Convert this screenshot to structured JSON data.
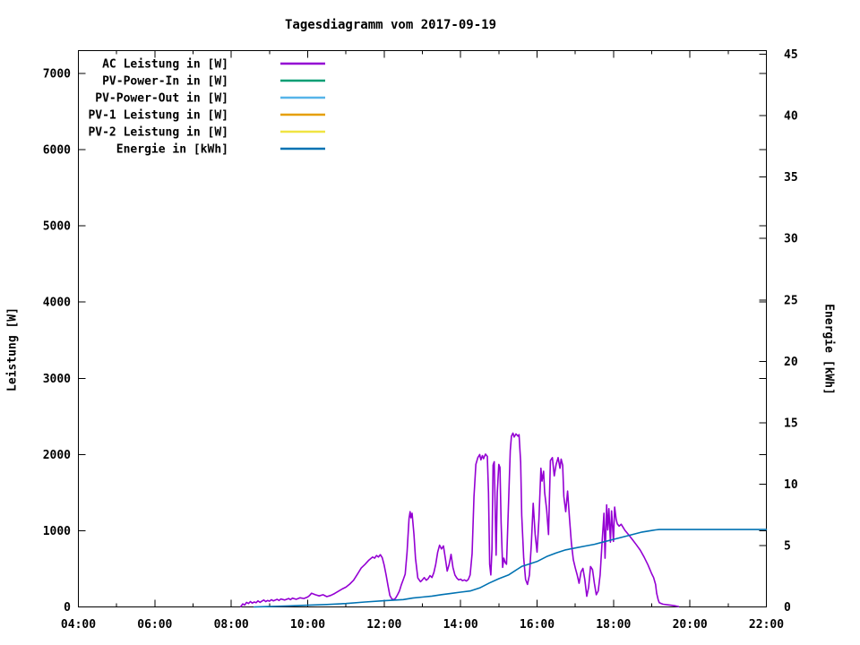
{
  "chart_data": {
    "type": "line",
    "title": "Tagesdiagramm vom 2017-09-19",
    "background": "#ffffff",
    "border_color": "#000000",
    "legend_position": "top-left",
    "x_axis": {
      "lim": [
        4,
        22
      ],
      "major_tick_hours": 2,
      "minor_tick_hours": 1,
      "tick_labels": [
        {
          "h": 4,
          "label": "04:00"
        },
        {
          "h": 6,
          "label": "06:00"
        },
        {
          "h": 8,
          "label": "08:00"
        },
        {
          "h": 10,
          "label": "10:00"
        },
        {
          "h": 12,
          "label": "12:00"
        },
        {
          "h": 14,
          "label": "14:00"
        },
        {
          "h": 16,
          "label": "16:00"
        },
        {
          "h": 18,
          "label": "18:00"
        },
        {
          "h": 20,
          "label": "20:00"
        },
        {
          "h": 22,
          "label": "22:00"
        }
      ]
    },
    "y_left": {
      "label": "Leistung [W]",
      "lim": [
        0,
        7300
      ],
      "tick_step": 1000,
      "ticks": [
        0,
        1000,
        2000,
        3000,
        4000,
        5000,
        6000,
        7000
      ]
    },
    "y_right": {
      "label": "Energie [kWh]",
      "lim": [
        0,
        45.3
      ],
      "tick_step": 5,
      "ticks": [
        0,
        5,
        10,
        15,
        20,
        25,
        30,
        35,
        40,
        45
      ]
    },
    "series": [
      {
        "name": "AC Leistung in [W]",
        "color": "#9400d3",
        "axis": "left",
        "points": [
          [
            8.25,
            5
          ],
          [
            8.3,
            40
          ],
          [
            8.35,
            25
          ],
          [
            8.4,
            60
          ],
          [
            8.45,
            45
          ],
          [
            8.5,
            70
          ],
          [
            8.55,
            50
          ],
          [
            8.6,
            65
          ],
          [
            8.65,
            55
          ],
          [
            8.7,
            80
          ],
          [
            8.75,
            60
          ],
          [
            8.8,
            75
          ],
          [
            8.85,
            90
          ],
          [
            8.9,
            70
          ],
          [
            8.95,
            85
          ],
          [
            9.0,
            75
          ],
          [
            9.05,
            95
          ],
          [
            9.1,
            80
          ],
          [
            9.2,
            100
          ],
          [
            9.25,
            85
          ],
          [
            9.3,
            105
          ],
          [
            9.4,
            90
          ],
          [
            9.5,
            110
          ],
          [
            9.55,
            95
          ],
          [
            9.6,
            115
          ],
          [
            9.7,
            100
          ],
          [
            9.8,
            120
          ],
          [
            9.9,
            110
          ],
          [
            10.0,
            130
          ],
          [
            10.05,
            150
          ],
          [
            10.1,
            180
          ],
          [
            10.2,
            160
          ],
          [
            10.3,
            145
          ],
          [
            10.4,
            160
          ],
          [
            10.5,
            135
          ],
          [
            10.6,
            150
          ],
          [
            10.7,
            175
          ],
          [
            10.8,
            205
          ],
          [
            10.9,
            235
          ],
          [
            11.0,
            260
          ],
          [
            11.1,
            300
          ],
          [
            11.2,
            350
          ],
          [
            11.3,
            430
          ],
          [
            11.35,
            470
          ],
          [
            11.4,
            510
          ],
          [
            11.5,
            560
          ],
          [
            11.6,
            615
          ],
          [
            11.7,
            655
          ],
          [
            11.75,
            640
          ],
          [
            11.8,
            675
          ],
          [
            11.85,
            655
          ],
          [
            11.9,
            685
          ],
          [
            11.95,
            645
          ],
          [
            12.0,
            550
          ],
          [
            12.05,
            420
          ],
          [
            12.1,
            280
          ],
          [
            12.15,
            150
          ],
          [
            12.2,
            105
          ],
          [
            12.25,
            95
          ],
          [
            12.3,
            115
          ],
          [
            12.35,
            160
          ],
          [
            12.4,
            210
          ],
          [
            12.45,
            290
          ],
          [
            12.5,
            360
          ],
          [
            12.55,
            430
          ],
          [
            12.6,
            720
          ],
          [
            12.65,
            1160
          ],
          [
            12.68,
            1250
          ],
          [
            12.7,
            1170
          ],
          [
            12.73,
            1230
          ],
          [
            12.78,
            950
          ],
          [
            12.82,
            640
          ],
          [
            12.88,
            380
          ],
          [
            12.95,
            330
          ],
          [
            13.0,
            355
          ],
          [
            13.05,
            385
          ],
          [
            13.1,
            350
          ],
          [
            13.15,
            370
          ],
          [
            13.2,
            410
          ],
          [
            13.25,
            385
          ],
          [
            13.3,
            450
          ],
          [
            13.35,
            560
          ],
          [
            13.4,
            720
          ],
          [
            13.45,
            810
          ],
          [
            13.5,
            760
          ],
          [
            13.55,
            800
          ],
          [
            13.6,
            640
          ],
          [
            13.65,
            470
          ],
          [
            13.7,
            560
          ],
          [
            13.75,
            690
          ],
          [
            13.8,
            520
          ],
          [
            13.85,
            420
          ],
          [
            13.9,
            380
          ],
          [
            13.95,
            355
          ],
          [
            14.0,
            365
          ],
          [
            14.05,
            345
          ],
          [
            14.1,
            355
          ],
          [
            14.15,
            340
          ],
          [
            14.2,
            360
          ],
          [
            14.25,
            420
          ],
          [
            14.3,
            700
          ],
          [
            14.35,
            1450
          ],
          [
            14.4,
            1870
          ],
          [
            14.45,
            1960
          ],
          [
            14.5,
            2000
          ],
          [
            14.53,
            1930
          ],
          [
            14.57,
            1985
          ],
          [
            14.6,
            1945
          ],
          [
            14.65,
            2005
          ],
          [
            14.7,
            1975
          ],
          [
            14.73,
            1500
          ],
          [
            14.76,
            560
          ],
          [
            14.79,
            420
          ],
          [
            14.82,
            760
          ],
          [
            14.85,
            1860
          ],
          [
            14.88,
            1905
          ],
          [
            14.9,
            1400
          ],
          [
            14.93,
            680
          ],
          [
            14.96,
            1500
          ],
          [
            15.0,
            1870
          ],
          [
            15.03,
            1830
          ],
          [
            15.06,
            1100
          ],
          [
            15.1,
            520
          ],
          [
            15.13,
            640
          ],
          [
            15.17,
            580
          ],
          [
            15.2,
            560
          ],
          [
            15.25,
            1300
          ],
          [
            15.3,
            2050
          ],
          [
            15.33,
            2240
          ],
          [
            15.37,
            2280
          ],
          [
            15.4,
            2230
          ],
          [
            15.45,
            2270
          ],
          [
            15.5,
            2240
          ],
          [
            15.53,
            2260
          ],
          [
            15.57,
            1900
          ],
          [
            15.6,
            1200
          ],
          [
            15.65,
            640
          ],
          [
            15.7,
            360
          ],
          [
            15.75,
            295
          ],
          [
            15.8,
            420
          ],
          [
            15.85,
            820
          ],
          [
            15.9,
            1360
          ],
          [
            15.95,
            950
          ],
          [
            16.0,
            720
          ],
          [
            16.05,
            1150
          ],
          [
            16.1,
            1820
          ],
          [
            16.13,
            1650
          ],
          [
            16.17,
            1780
          ],
          [
            16.2,
            1500
          ],
          [
            16.25,
            1280
          ],
          [
            16.3,
            950
          ],
          [
            16.35,
            1920
          ],
          [
            16.4,
            1960
          ],
          [
            16.45,
            1720
          ],
          [
            16.5,
            1870
          ],
          [
            16.55,
            1960
          ],
          [
            16.6,
            1820
          ],
          [
            16.63,
            1940
          ],
          [
            16.67,
            1860
          ],
          [
            16.7,
            1450
          ],
          [
            16.75,
            1250
          ],
          [
            16.8,
            1520
          ],
          [
            16.85,
            1150
          ],
          [
            16.9,
            830
          ],
          [
            16.95,
            620
          ],
          [
            17.0,
            510
          ],
          [
            17.05,
            420
          ],
          [
            17.1,
            310
          ],
          [
            17.15,
            460
          ],
          [
            17.2,
            505
          ],
          [
            17.25,
            360
          ],
          [
            17.3,
            140
          ],
          [
            17.35,
            260
          ],
          [
            17.4,
            530
          ],
          [
            17.45,
            490
          ],
          [
            17.5,
            310
          ],
          [
            17.55,
            160
          ],
          [
            17.6,
            210
          ],
          [
            17.65,
            420
          ],
          [
            17.7,
            830
          ],
          [
            17.75,
            1230
          ],
          [
            17.78,
            640
          ],
          [
            17.82,
            1340
          ],
          [
            17.85,
            1010
          ],
          [
            17.88,
            1290
          ],
          [
            17.92,
            850
          ],
          [
            17.95,
            1260
          ],
          [
            18.0,
            860
          ],
          [
            18.03,
            1310
          ],
          [
            18.07,
            1150
          ],
          [
            18.1,
            1090
          ],
          [
            18.15,
            1060
          ],
          [
            18.2,
            1085
          ],
          [
            18.25,
            1045
          ],
          [
            18.3,
            1005
          ],
          [
            18.35,
            975
          ],
          [
            18.4,
            945
          ],
          [
            18.5,
            880
          ],
          [
            18.6,
            815
          ],
          [
            18.7,
            745
          ],
          [
            18.8,
            655
          ],
          [
            18.9,
            555
          ],
          [
            19.0,
            435
          ],
          [
            19.05,
            385
          ],
          [
            19.1,
            295
          ],
          [
            19.13,
            180
          ],
          [
            19.17,
            90
          ],
          [
            19.2,
            55
          ],
          [
            19.25,
            45
          ],
          [
            19.3,
            35
          ],
          [
            19.4,
            28
          ],
          [
            19.5,
            22
          ],
          [
            19.6,
            15
          ],
          [
            19.65,
            10
          ],
          [
            19.7,
            5
          ]
        ]
      },
      {
        "name": "PV-Power-In in [W]",
        "color": "#009e73",
        "axis": "left",
        "points": []
      },
      {
        "name": "PV-Power-Out in [W]",
        "color": "#56b4e9",
        "axis": "left",
        "points": []
      },
      {
        "name": "PV-1 Leistung in [W]",
        "color": "#e69f00",
        "axis": "left",
        "points": []
      },
      {
        "name": "PV-2 Leistung in [W]",
        "color": "#f0e442",
        "axis": "left",
        "points": []
      },
      {
        "name": "Energie in [kWh]",
        "color": "#0072b2",
        "axis": "right",
        "points": [
          [
            8.6,
            0.0
          ],
          [
            9.0,
            0.03
          ],
          [
            9.5,
            0.08
          ],
          [
            10.0,
            0.14
          ],
          [
            10.5,
            0.2
          ],
          [
            11.0,
            0.28
          ],
          [
            11.5,
            0.4
          ],
          [
            12.0,
            0.5
          ],
          [
            12.2,
            0.54
          ],
          [
            12.5,
            0.6
          ],
          [
            12.75,
            0.72
          ],
          [
            13.0,
            0.8
          ],
          [
            13.25,
            0.88
          ],
          [
            13.5,
            1.0
          ],
          [
            13.75,
            1.1
          ],
          [
            14.0,
            1.2
          ],
          [
            14.25,
            1.3
          ],
          [
            14.5,
            1.55
          ],
          [
            14.75,
            1.95
          ],
          [
            15.0,
            2.3
          ],
          [
            15.25,
            2.6
          ],
          [
            15.5,
            3.1
          ],
          [
            15.6,
            3.3
          ],
          [
            15.75,
            3.45
          ],
          [
            16.0,
            3.7
          ],
          [
            16.25,
            4.1
          ],
          [
            16.5,
            4.4
          ],
          [
            16.75,
            4.65
          ],
          [
            17.0,
            4.8
          ],
          [
            17.25,
            4.95
          ],
          [
            17.5,
            5.1
          ],
          [
            17.75,
            5.3
          ],
          [
            18.0,
            5.5
          ],
          [
            18.25,
            5.7
          ],
          [
            18.5,
            5.9
          ],
          [
            18.75,
            6.1
          ],
          [
            19.0,
            6.22
          ],
          [
            19.1,
            6.27
          ],
          [
            19.2,
            6.3
          ],
          [
            20.0,
            6.3
          ],
          [
            21.0,
            6.3
          ],
          [
            22.0,
            6.3
          ]
        ]
      }
    ]
  }
}
